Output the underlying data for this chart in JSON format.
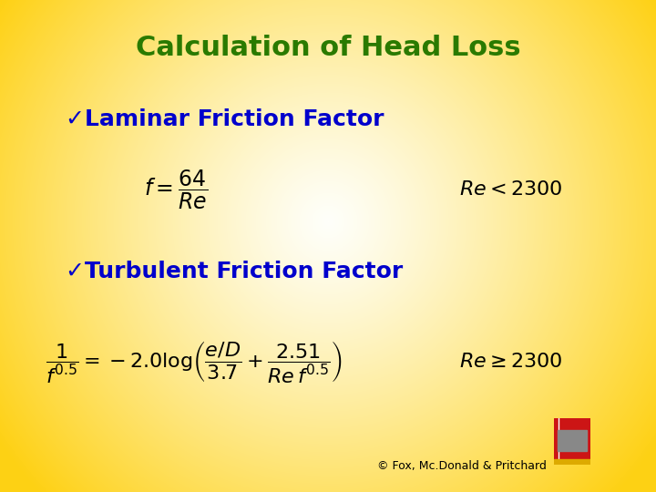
{
  "title": "Calculation of Head Loss",
  "title_color": "#2a7a00",
  "title_fontsize": 22,
  "bullet1": "✓Laminar Friction Factor",
  "bullet2": "✓Turbulent Friction Factor",
  "bullet_color": "#0000cc",
  "bullet_fontsize": 18,
  "math_color": "black",
  "eq_fontsize": 15,
  "copyright": "© Fox, Mc.Donald & Pritchard",
  "copyright_color": "black",
  "copyright_fontsize": 9,
  "bg_yellow": [
    0.996,
    0.82,
    0.08
  ],
  "bg_white": [
    1.0,
    1.0,
    0.98
  ]
}
